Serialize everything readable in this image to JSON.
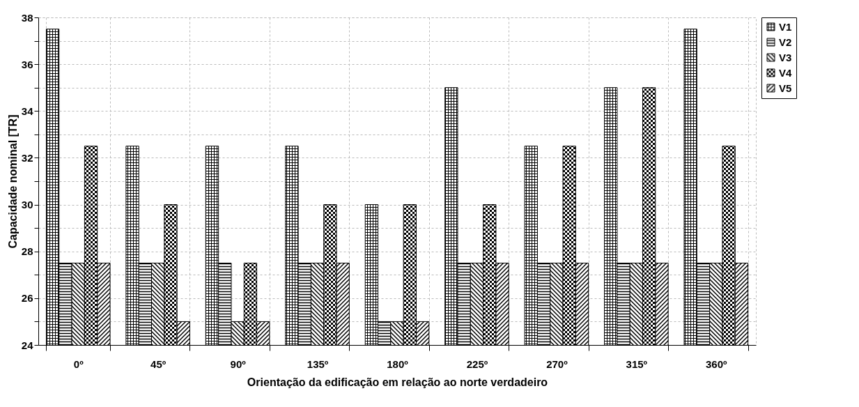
{
  "chart_data": {
    "type": "bar",
    "xlabel": "Orientação da edificação em relação ao norte verdadeiro",
    "ylabel": "Capacidade nominal [TR]",
    "categories": [
      "0º",
      "45º",
      "90º",
      "135º",
      "180º",
      "225º",
      "270º",
      "315º",
      "360º"
    ],
    "series": [
      {
        "name": "V1",
        "color": "#000000",
        "values": [
          37.5,
          32.5,
          32.5,
          32.5,
          30,
          35,
          32.5,
          35,
          37.5
        ]
      },
      {
        "name": "V2",
        "color": "#000000",
        "values": [
          27.5,
          27.5,
          27.5,
          27.5,
          25,
          27.5,
          27.5,
          27.5,
          27.5
        ]
      },
      {
        "name": "V3",
        "color": "#000000",
        "values": [
          27.5,
          27.5,
          25,
          27.5,
          25,
          27.5,
          27.5,
          27.5,
          27.5
        ]
      },
      {
        "name": "V4",
        "color": "#000000",
        "values": [
          32.5,
          30,
          27.5,
          30,
          30,
          30,
          32.5,
          35,
          32.5
        ]
      },
      {
        "name": "V5",
        "color": "#000000",
        "values": [
          27.5,
          25,
          25,
          27.5,
          25,
          27.5,
          27.5,
          27.5,
          27.5
        ]
      }
    ],
    "ylim": [
      24,
      38
    ],
    "yticks": [
      24,
      {
        "value": 25,
        "label": null
      },
      26,
      {
        "value": 27,
        "label": null
      },
      28,
      {
        "value": 29,
        "label": null
      },
      30,
      {
        "value": 31,
        "label": null
      },
      32,
      {
        "value": 33,
        "label": null
      },
      34,
      {
        "value": 35,
        "label": null
      },
      36,
      {
        "value": 37,
        "label": null
      },
      38
    ],
    "grid": true,
    "legend": "right"
  }
}
